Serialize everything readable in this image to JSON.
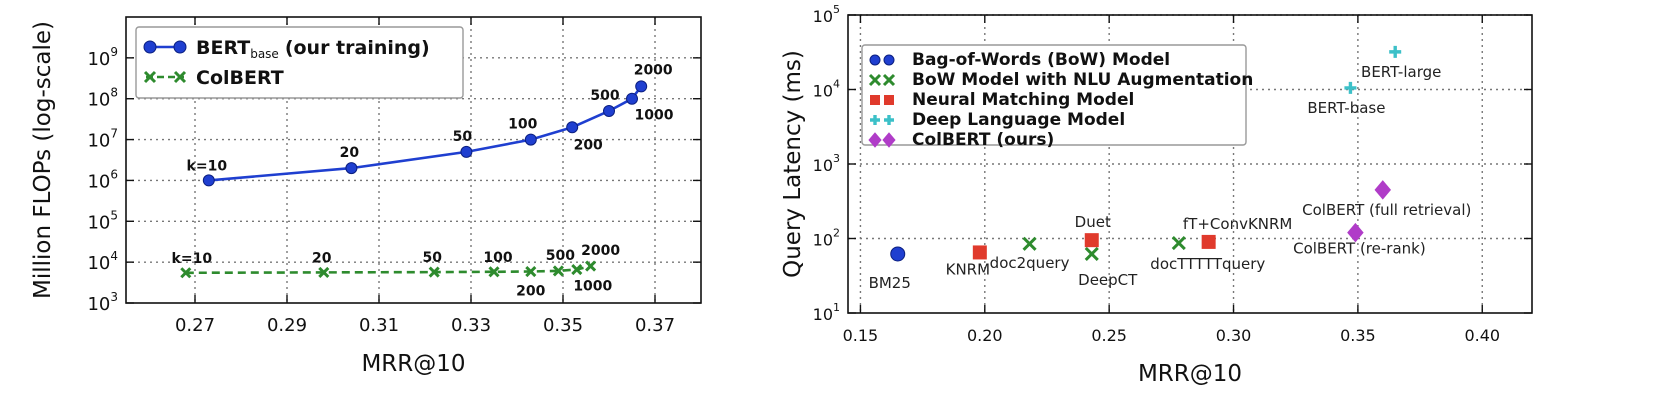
{
  "chart_data": [
    {
      "type": "line",
      "xlabel": "MRR@10",
      "ylabel": "Million FLOPs (log-scale)",
      "xlim": [
        0.255,
        0.38
      ],
      "ylim": [
        1000,
        10000000000
      ],
      "yscale": "log",
      "x_ticks": [
        "0.27",
        "0.29",
        "0.31",
        "0.33",
        "0.35",
        "0.37"
      ],
      "x_tick_values": [
        0.27,
        0.29,
        0.31,
        0.33,
        0.35,
        0.37
      ],
      "y_tick_values": [
        1000,
        10000,
        100000,
        1000000,
        10000000,
        100000000,
        1000000000
      ],
      "y_tick_exponents": [
        "3",
        "4",
        "5",
        "6",
        "7",
        "8",
        "9"
      ],
      "y_tick_base": "10",
      "grid": true,
      "legend_position": "top-left",
      "series": [
        {
          "name": "BERT",
          "name_subscript": "base",
          "name_suffix": "(our training)",
          "color": "#1f3fd0",
          "marker": "circle",
          "points": [
            {
              "x": 0.273,
              "y": 1000000,
              "label": "k=10"
            },
            {
              "x": 0.304,
              "y": 2000000,
              "label": "20"
            },
            {
              "x": 0.329,
              "y": 5000000,
              "label": "50"
            },
            {
              "x": 0.343,
              "y": 10000000,
              "label": "100"
            },
            {
              "x": 0.352,
              "y": 20000000,
              "label": "200"
            },
            {
              "x": 0.36,
              "y": 50000000,
              "label": "500"
            },
            {
              "x": 0.365,
              "y": 100000000,
              "label": "1000"
            },
            {
              "x": 0.367,
              "y": 200000000,
              "label": "2000"
            }
          ]
        },
        {
          "name": "ColBERT",
          "color": "#2e8b2e",
          "marker": "x",
          "points": [
            {
              "x": 0.268,
              "y": 5500,
              "label": "k=10"
            },
            {
              "x": 0.298,
              "y": 5600,
              "label": "20"
            },
            {
              "x": 0.322,
              "y": 5700,
              "label": "50"
            },
            {
              "x": 0.335,
              "y": 5800,
              "label": "100"
            },
            {
              "x": 0.343,
              "y": 5900,
              "label": "200"
            },
            {
              "x": 0.349,
              "y": 6100,
              "label": "500"
            },
            {
              "x": 0.353,
              "y": 6600,
              "label": "1000"
            },
            {
              "x": 0.356,
              "y": 8000,
              "label": "2000"
            }
          ]
        }
      ]
    },
    {
      "type": "scatter",
      "xlabel": "MRR@10",
      "ylabel": "Query Latency (ms)",
      "xlim": [
        0.145,
        0.42
      ],
      "ylim": [
        10,
        100000
      ],
      "yscale": "log",
      "x_ticks": [
        "0.15",
        "0.20",
        "0.25",
        "0.30",
        "0.35",
        "0.40"
      ],
      "x_tick_values": [
        0.15,
        0.2,
        0.25,
        0.3,
        0.35,
        0.4
      ],
      "y_tick_values": [
        10,
        100,
        1000,
        10000,
        100000
      ],
      "y_tick_exponents": [
        "1",
        "2",
        "3",
        "4",
        "5"
      ],
      "y_tick_base": "10",
      "grid": true,
      "legend_position": "top-left",
      "series": [
        {
          "name": "Bag-of-Words (BoW) Model",
          "color": "#1f3fd0",
          "marker": "circle",
          "points": [
            {
              "x": 0.165,
              "y": 62,
              "label": "BM25"
            }
          ]
        },
        {
          "name": "BoW Model with NLU Augmentation",
          "color": "#2e8b2e",
          "marker": "x",
          "points": [
            {
              "x": 0.218,
              "y": 85,
              "label": "doc2query"
            },
            {
              "x": 0.243,
              "y": 62,
              "label": "DeepCT"
            },
            {
              "x": 0.278,
              "y": 87,
              "label": "docTTTTTquery"
            }
          ]
        },
        {
          "name": "Neural Matching Model",
          "color": "#e03a2c",
          "marker": "square",
          "points": [
            {
              "x": 0.198,
              "y": 65,
              "label": "KNRM"
            },
            {
              "x": 0.243,
              "y": 95,
              "label": "Duet"
            },
            {
              "x": 0.29,
              "y": 90,
              "label": "fT+ConvKNRM"
            }
          ]
        },
        {
          "name": "Deep Language Model",
          "color": "#3cc0c8",
          "marker": "plus",
          "points": [
            {
              "x": 0.347,
              "y": 10500,
              "label": "BERT-base"
            },
            {
              "x": 0.365,
              "y": 32000,
              "label": "BERT-large"
            }
          ]
        },
        {
          "name": "ColBERT (ours)",
          "color": "#b03cc8",
          "marker": "diamond",
          "points": [
            {
              "x": 0.349,
              "y": 120,
              "label": "ColBERT (re-rank)"
            },
            {
              "x": 0.36,
              "y": 450,
              "label": "ColBERT (full retrieval)"
            }
          ]
        }
      ]
    }
  ]
}
